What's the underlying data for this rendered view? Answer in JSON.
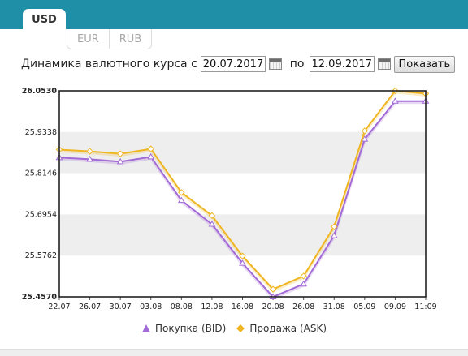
{
  "tabs": {
    "active": "USD",
    "sub": [
      "EUR",
      "RUB"
    ]
  },
  "controls": {
    "label_from": "Динамика валютного курса с",
    "date_from": "20.07.2017",
    "label_to": "по",
    "date_to": "12.09.2017",
    "show_button": "Показать",
    "calendar_icon": "calendar-icon"
  },
  "colors": {
    "bid": "#a26ad6",
    "ask": "#f0b622",
    "band": "#eeeeee",
    "header": "#1e8fa6"
  },
  "chart_data": {
    "type": "line",
    "categories": [
      "22.07",
      "26.07",
      "30.07",
      "03.08",
      "08.08",
      "12.08",
      "16.08",
      "20.08",
      "26.08",
      "31.08",
      "05.09",
      "09.09",
      "11:09"
    ],
    "yticks": [
      "25.4570",
      "25.5762",
      "25.6954",
      "25.8146",
      "25.9338",
      "26.0530"
    ],
    "ylim": [
      25.457,
      26.053
    ],
    "grid": "horizontal bands",
    "legend_position": "bottom",
    "series": [
      {
        "name": "Покупка (BID)",
        "marker": "triangle",
        "values": [
          25.86,
          25.855,
          25.848,
          25.862,
          25.736,
          25.667,
          25.554,
          25.457,
          25.494,
          25.634,
          25.913,
          26.023,
          26.023
        ]
      },
      {
        "name": "Продажа (ASK)",
        "marker": "diamond",
        "values": [
          25.883,
          25.878,
          25.871,
          25.885,
          25.759,
          25.692,
          25.575,
          25.479,
          25.517,
          25.66,
          25.937,
          26.053,
          26.045
        ]
      }
    ]
  }
}
